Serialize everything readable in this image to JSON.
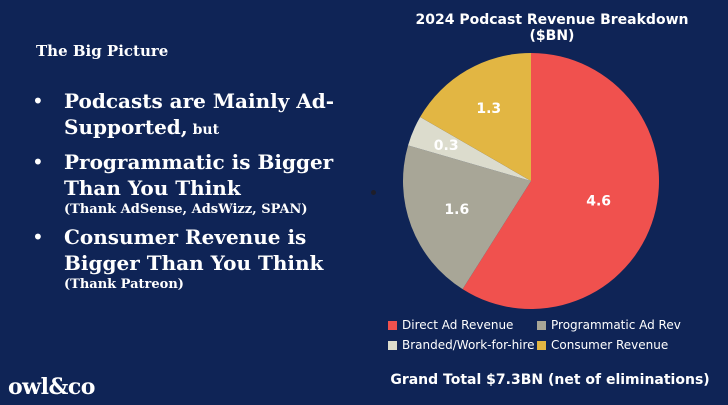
{
  "left_panel": {
    "heading": "The Big Picture",
    "bullets": [
      {
        "main": "Podcasts are Mainly Ad-Supported,",
        "inline": " but",
        "sub": ""
      },
      {
        "main": "Programmatic is Bigger Than You Think",
        "inline": "",
        "sub": "(Thank AdSense, AdsWizz, SPAN)"
      },
      {
        "main": "Consumer Revenue is Bigger Than You Think",
        "inline": "",
        "sub": "(Thank Patreon)"
      }
    ],
    "bullet_symbol": "•"
  },
  "logo": "owl&co",
  "chart_data": {
    "type": "pie",
    "title": "2024 Podcast Revenue Breakdown ($BN)",
    "slices": [
      {
        "label": "Direct Ad Revenue",
        "value": 4.6,
        "color": "#f0514e"
      },
      {
        "label": "Programmatic Ad Rev",
        "value": 1.6,
        "color": "#a8a697"
      },
      {
        "label": "Branded/Work-for-hire",
        "value": 0.3,
        "color": "#dcdccd"
      },
      {
        "label": "Consumer Revenue",
        "value": 1.3,
        "color": "#e2b643"
      }
    ],
    "data_labels": [
      "4.6",
      "1.6",
      "0.3",
      "1.3"
    ],
    "legend_position": "bottom",
    "footer": "Grand Total $7.3BN (net of eliminations)"
  },
  "colors": {
    "background": "#0f2456",
    "text": "#ffffff"
  }
}
